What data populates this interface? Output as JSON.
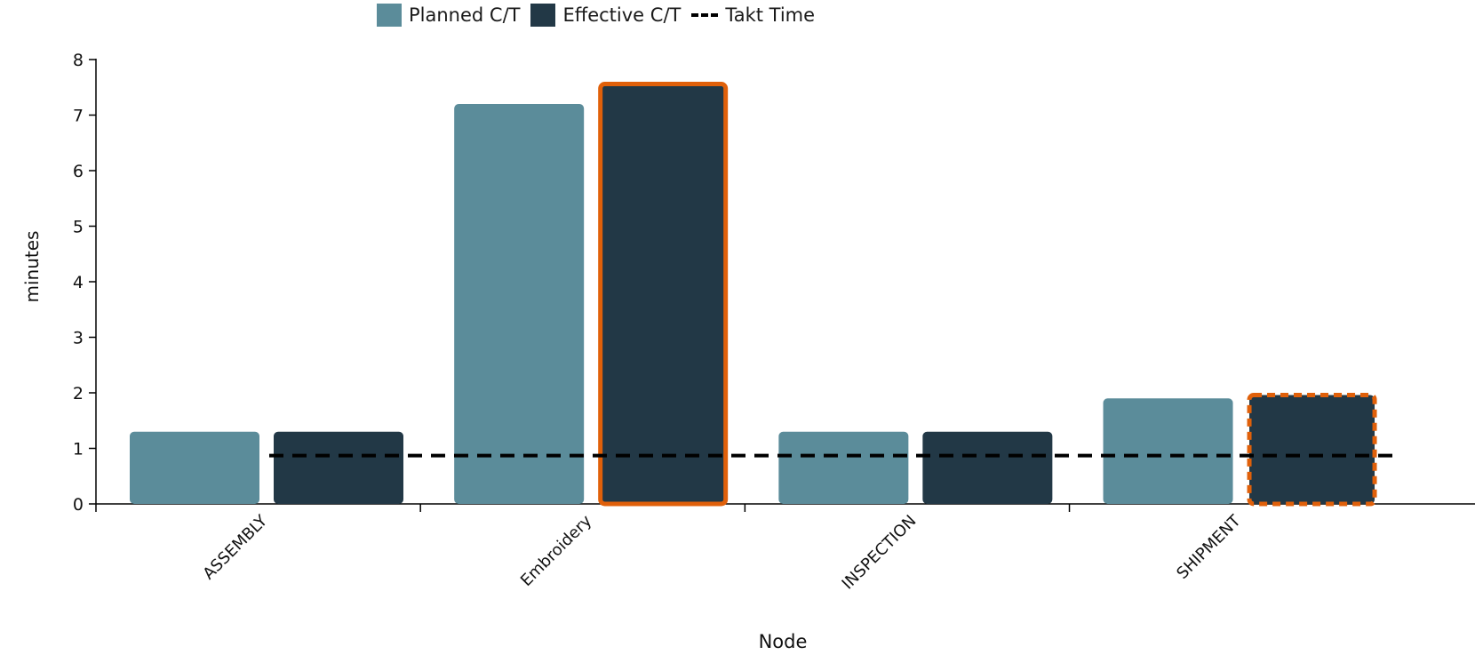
{
  "chart_data": {
    "type": "bar",
    "title": "",
    "xlabel": "Node",
    "ylabel": "minutes",
    "ylim": [
      0,
      8
    ],
    "yticks": [
      "0",
      "1",
      "2",
      "3",
      "4",
      "5",
      "6",
      "7",
      "8"
    ],
    "categories": [
      "ASSEMBLY",
      "Embroidery",
      "INSPECTION",
      "SHIPMENT"
    ],
    "series": [
      {
        "name": "Planned C/T",
        "color": "#5b8c9a",
        "values": [
          1.3,
          7.2,
          1.3,
          1.9
        ]
      },
      {
        "name": "Effective C/T",
        "color": "#223846",
        "values": [
          1.3,
          7.6,
          1.3,
          2.0
        ]
      }
    ],
    "takt": {
      "name": "Takt Time",
      "value": 0.87,
      "color": "#000000"
    },
    "highlights": [
      {
        "category": "Embroidery",
        "series": "Effective C/T",
        "color": "#e0600a",
        "style": "solid"
      },
      {
        "category": "SHIPMENT",
        "series": "Effective C/T",
        "color": "#e0600a",
        "style": "dashed"
      }
    ],
    "legend_position": "top",
    "grid": false
  }
}
